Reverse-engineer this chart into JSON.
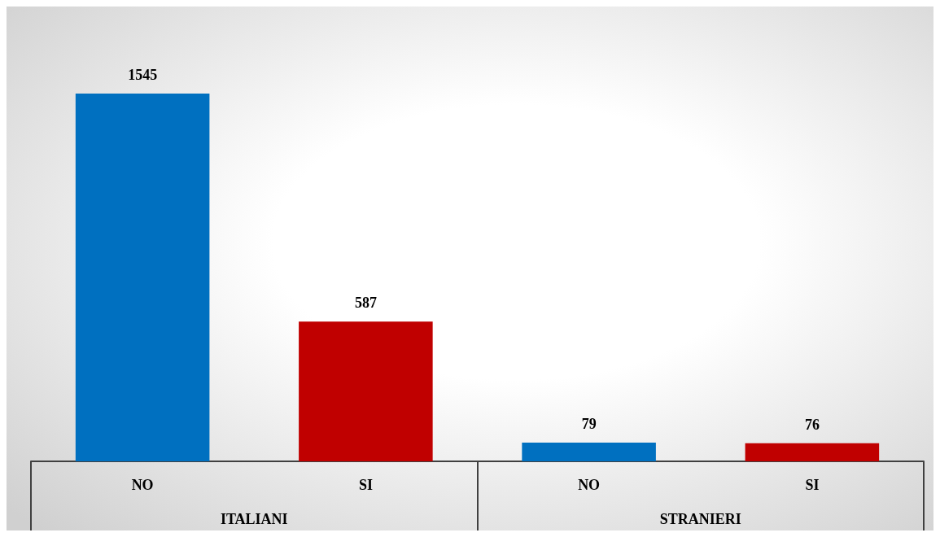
{
  "chart_data": {
    "type": "bar",
    "categories": [
      "NO",
      "SI",
      "NO",
      "SI"
    ],
    "values": [
      1545,
      587,
      79,
      76
    ],
    "colors": [
      "#0070c0",
      "#c00000",
      "#0070c0",
      "#c00000"
    ],
    "data_labels": true,
    "annotations": [
      "ITALIANI",
      "STRANIERI"
    ]
  }
}
